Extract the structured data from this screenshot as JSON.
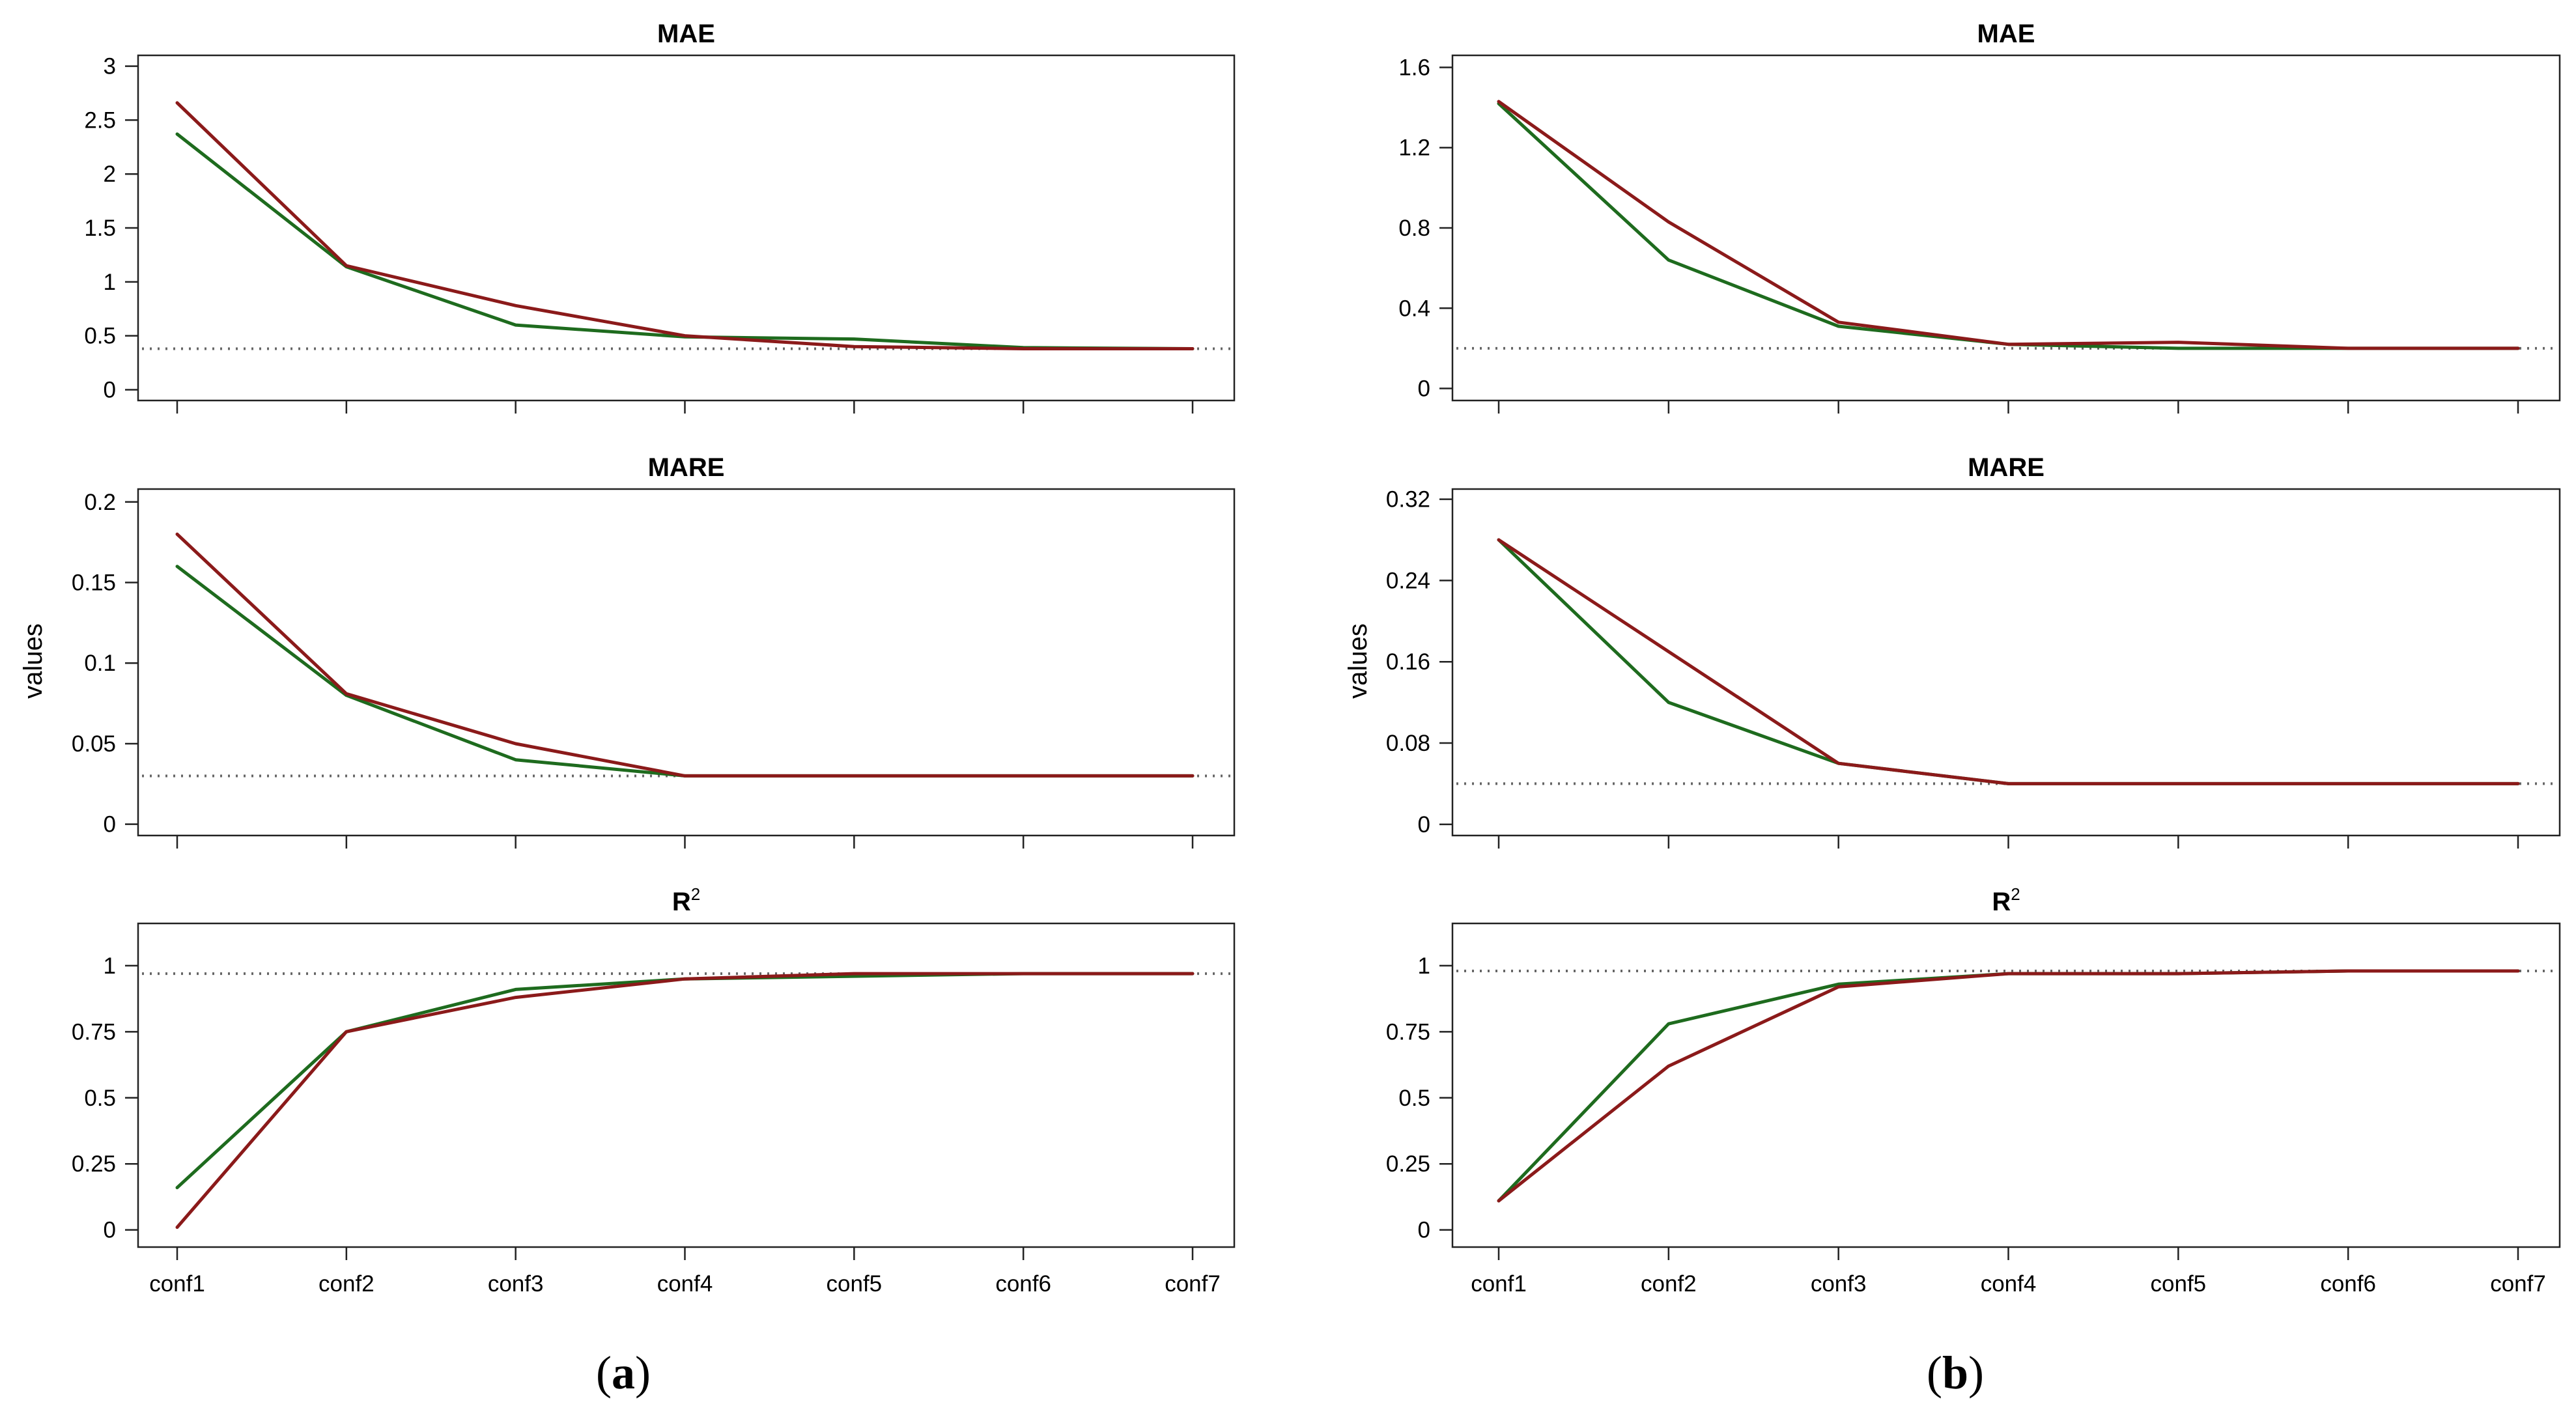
{
  "figure": {
    "ylabel": "values",
    "series_colors": {
      "series-green": "#1e6b1e",
      "series-red": "#8b1a1a"
    },
    "captions": [
      {
        "open": "(",
        "letter": "a",
        "close": ")"
      },
      {
        "open": "(",
        "letter": "b",
        "close": ")"
      }
    ]
  },
  "chart_data": [
    {
      "type": "line",
      "id": "a-mae",
      "column": "a",
      "row": 0,
      "title": "MAE",
      "title_sup": "",
      "categories": [
        "conf1",
        "conf2",
        "conf3",
        "conf4",
        "conf5",
        "conf6",
        "conf7"
      ],
      "ylim": [
        -0.1,
        3.1
      ],
      "yticks": [
        0,
        0.5,
        1,
        1.5,
        2,
        2.5,
        3
      ],
      "ytick_labels": [
        "0",
        "0.5",
        "1",
        "1.5",
        "2",
        "2.5",
        "3"
      ],
      "reference": 0.38,
      "series": [
        {
          "name": "series-green",
          "values": [
            2.37,
            1.14,
            0.6,
            0.49,
            0.47,
            0.39,
            0.38
          ]
        },
        {
          "name": "series-red",
          "values": [
            2.66,
            1.15,
            0.78,
            0.5,
            0.4,
            0.38,
            0.38
          ]
        }
      ]
    },
    {
      "type": "line",
      "id": "a-mare",
      "column": "a",
      "row": 1,
      "title": "MARE",
      "title_sup": "",
      "categories": [
        "conf1",
        "conf2",
        "conf3",
        "conf4",
        "conf5",
        "conf6",
        "conf7"
      ],
      "ylim": [
        -0.007,
        0.208
      ],
      "yticks": [
        0,
        0.05,
        0.1,
        0.15,
        0.2
      ],
      "ytick_labels": [
        "0",
        "0.05",
        "0.1",
        "0.15",
        "0.2"
      ],
      "reference": 0.03,
      "series": [
        {
          "name": "series-green",
          "values": [
            0.16,
            0.08,
            0.04,
            0.03,
            0.03,
            0.03,
            0.03
          ]
        },
        {
          "name": "series-red",
          "values": [
            0.18,
            0.081,
            0.05,
            0.03,
            0.03,
            0.03,
            0.03
          ]
        }
      ]
    },
    {
      "type": "line",
      "id": "a-r2",
      "column": "a",
      "row": 2,
      "title": "R",
      "title_sup": "2",
      "categories": [
        "conf1",
        "conf2",
        "conf3",
        "conf4",
        "conf5",
        "conf6",
        "conf7"
      ],
      "ylim": [
        -0.065,
        1.16
      ],
      "yticks": [
        0,
        0.25,
        0.5,
        0.75,
        1
      ],
      "ytick_labels": [
        "0",
        "0.25",
        "0.5",
        "0.75",
        "1"
      ],
      "reference": 0.97,
      "series": [
        {
          "name": "series-green",
          "values": [
            0.16,
            0.75,
            0.91,
            0.95,
            0.96,
            0.97,
            0.97
          ]
        },
        {
          "name": "series-red",
          "values": [
            0.01,
            0.75,
            0.88,
            0.95,
            0.97,
            0.97,
            0.97
          ]
        }
      ]
    },
    {
      "type": "line",
      "id": "b-mae",
      "column": "b",
      "row": 0,
      "title": "MAE",
      "title_sup": "",
      "categories": [
        "conf1",
        "conf2",
        "conf3",
        "conf4",
        "conf5",
        "conf6",
        "conf7"
      ],
      "ylim": [
        -0.06,
        1.66
      ],
      "yticks": [
        0,
        0.4,
        0.8,
        1.2,
        1.6
      ],
      "ytick_labels": [
        "0",
        "0.4",
        "0.8",
        "1.2",
        "1.6"
      ],
      "reference": 0.2,
      "series": [
        {
          "name": "series-green",
          "values": [
            1.42,
            0.64,
            0.31,
            0.22,
            0.2,
            0.2,
            0.2
          ]
        },
        {
          "name": "series-red",
          "values": [
            1.43,
            0.83,
            0.33,
            0.22,
            0.23,
            0.2,
            0.2
          ]
        }
      ]
    },
    {
      "type": "line",
      "id": "b-mare",
      "column": "b",
      "row": 1,
      "title": "MARE",
      "title_sup": "",
      "categories": [
        "conf1",
        "conf2",
        "conf3",
        "conf4",
        "conf5",
        "conf6",
        "conf7"
      ],
      "ylim": [
        -0.011,
        0.33
      ],
      "yticks": [
        0,
        0.08,
        0.16,
        0.24,
        0.32
      ],
      "ytick_labels": [
        "0",
        "0.08",
        "0.16",
        "0.24",
        "0.32"
      ],
      "reference": 0.04,
      "series": [
        {
          "name": "series-green",
          "values": [
            0.28,
            0.12,
            0.06,
            0.04,
            0.04,
            0.04,
            0.04
          ]
        },
        {
          "name": "series-red",
          "values": [
            0.28,
            0.17,
            0.06,
            0.04,
            0.04,
            0.04,
            0.04
          ]
        }
      ]
    },
    {
      "type": "line",
      "id": "b-r2",
      "column": "b",
      "row": 2,
      "title": "R",
      "title_sup": "2",
      "categories": [
        "conf1",
        "conf2",
        "conf3",
        "conf4",
        "conf5",
        "conf6",
        "conf7"
      ],
      "ylim": [
        -0.065,
        1.16
      ],
      "yticks": [
        0,
        0.25,
        0.5,
        0.75,
        1
      ],
      "ytick_labels": [
        "0",
        "0.25",
        "0.5",
        "0.75",
        "1"
      ],
      "reference": 0.98,
      "series": [
        {
          "name": "series-green",
          "values": [
            0.11,
            0.78,
            0.93,
            0.97,
            0.97,
            0.98,
            0.98
          ]
        },
        {
          "name": "series-red",
          "values": [
            0.11,
            0.62,
            0.92,
            0.97,
            0.97,
            0.98,
            0.98
          ]
        }
      ]
    }
  ]
}
